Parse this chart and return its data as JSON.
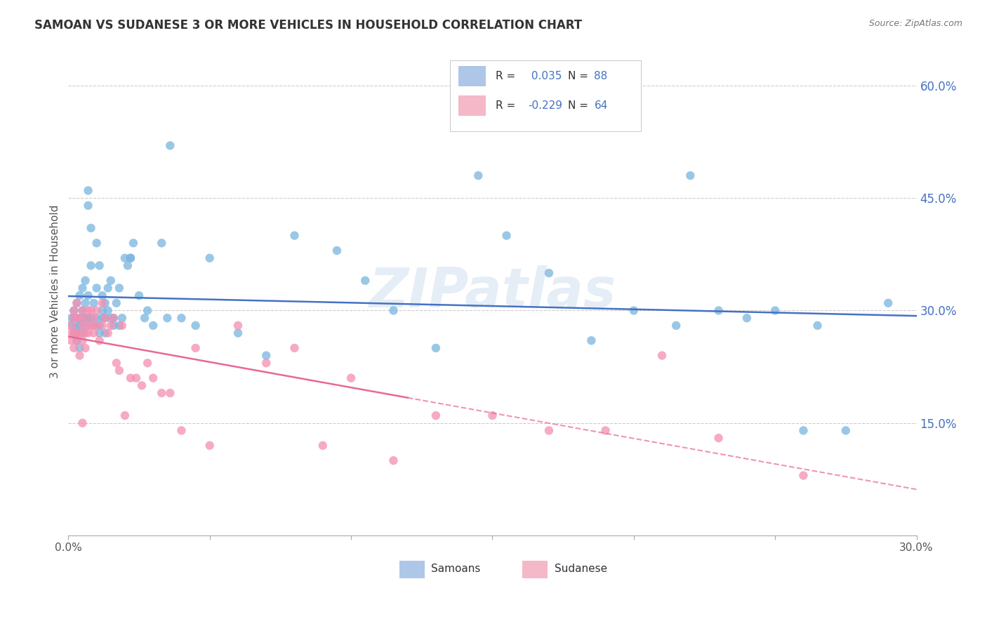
{
  "title": "SAMOAN VS SUDANESE 3 OR MORE VEHICLES IN HOUSEHOLD CORRELATION CHART",
  "source": "Source: ZipAtlas.com",
  "ylabel": "3 or more Vehicles in Household",
  "ytick_values": [
    0.15,
    0.3,
    0.45,
    0.6
  ],
  "xlim": [
    0.0,
    0.3
  ],
  "ylim": [
    0.0,
    0.65
  ],
  "watermark": "ZIPatlas",
  "samoans_scatter_color": "#7ab5e0",
  "sudanese_scatter_color": "#f48fb1",
  "samoans_legend_color": "#aec6e8",
  "sudanese_legend_color": "#f4b8c8",
  "samoans_line_color": "#4472c4",
  "sudanese_line_color": "#e8679a",
  "samoans_R": 0.035,
  "samoans_N": 88,
  "sudanese_R": -0.229,
  "sudanese_N": 64,
  "ytick_color": "#4472c4",
  "xtick_color": "#555555",
  "grid_color": "#cccccc",
  "title_color": "#333333",
  "source_color": "#777777",
  "samoans_x": [
    0.001,
    0.001,
    0.002,
    0.002,
    0.002,
    0.003,
    0.003,
    0.003,
    0.003,
    0.004,
    0.004,
    0.004,
    0.004,
    0.005,
    0.005,
    0.005,
    0.005,
    0.006,
    0.006,
    0.006,
    0.006,
    0.007,
    0.007,
    0.007,
    0.007,
    0.008,
    0.008,
    0.008,
    0.009,
    0.009,
    0.01,
    0.01,
    0.01,
    0.011,
    0.011,
    0.011,
    0.012,
    0.012,
    0.012,
    0.013,
    0.013,
    0.013,
    0.014,
    0.014,
    0.015,
    0.015,
    0.016,
    0.016,
    0.017,
    0.018,
    0.019,
    0.02,
    0.021,
    0.022,
    0.023,
    0.025,
    0.027,
    0.03,
    0.033,
    0.036,
    0.04,
    0.045,
    0.05,
    0.06,
    0.07,
    0.08,
    0.095,
    0.105,
    0.115,
    0.13,
    0.145,
    0.155,
    0.17,
    0.185,
    0.2,
    0.215,
    0.23,
    0.25,
    0.265,
    0.275,
    0.29,
    0.22,
    0.24,
    0.26,
    0.035,
    0.028,
    0.022,
    0.018
  ],
  "samoans_y": [
    0.29,
    0.28,
    0.3,
    0.27,
    0.29,
    0.31,
    0.28,
    0.27,
    0.26,
    0.32,
    0.29,
    0.28,
    0.25,
    0.33,
    0.3,
    0.29,
    0.27,
    0.34,
    0.31,
    0.29,
    0.28,
    0.46,
    0.44,
    0.32,
    0.29,
    0.41,
    0.36,
    0.29,
    0.31,
    0.28,
    0.39,
    0.33,
    0.29,
    0.36,
    0.28,
    0.27,
    0.32,
    0.3,
    0.29,
    0.31,
    0.29,
    0.27,
    0.33,
    0.3,
    0.34,
    0.29,
    0.29,
    0.28,
    0.31,
    0.28,
    0.29,
    0.37,
    0.36,
    0.37,
    0.39,
    0.32,
    0.29,
    0.28,
    0.39,
    0.52,
    0.29,
    0.28,
    0.37,
    0.27,
    0.24,
    0.4,
    0.38,
    0.34,
    0.3,
    0.25,
    0.48,
    0.4,
    0.35,
    0.26,
    0.3,
    0.28,
    0.3,
    0.3,
    0.28,
    0.14,
    0.31,
    0.48,
    0.29,
    0.14,
    0.29,
    0.3,
    0.37,
    0.33
  ],
  "sudanese_x": [
    0.001,
    0.001,
    0.001,
    0.002,
    0.002,
    0.002,
    0.002,
    0.003,
    0.003,
    0.003,
    0.003,
    0.004,
    0.004,
    0.004,
    0.005,
    0.005,
    0.005,
    0.005,
    0.006,
    0.006,
    0.006,
    0.007,
    0.007,
    0.007,
    0.008,
    0.008,
    0.009,
    0.009,
    0.01,
    0.01,
    0.011,
    0.012,
    0.012,
    0.013,
    0.014,
    0.015,
    0.016,
    0.017,
    0.018,
    0.019,
    0.02,
    0.022,
    0.024,
    0.026,
    0.028,
    0.03,
    0.033,
    0.036,
    0.04,
    0.045,
    0.05,
    0.06,
    0.07,
    0.08,
    0.09,
    0.1,
    0.115,
    0.13,
    0.15,
    0.17,
    0.19,
    0.21,
    0.23,
    0.26
  ],
  "sudanese_y": [
    0.28,
    0.27,
    0.26,
    0.3,
    0.29,
    0.27,
    0.25,
    0.31,
    0.29,
    0.27,
    0.26,
    0.29,
    0.27,
    0.24,
    0.3,
    0.28,
    0.26,
    0.15,
    0.29,
    0.27,
    0.25,
    0.3,
    0.28,
    0.27,
    0.3,
    0.28,
    0.29,
    0.27,
    0.3,
    0.28,
    0.26,
    0.31,
    0.28,
    0.29,
    0.27,
    0.28,
    0.29,
    0.23,
    0.22,
    0.28,
    0.16,
    0.21,
    0.21,
    0.2,
    0.23,
    0.21,
    0.19,
    0.19,
    0.14,
    0.25,
    0.12,
    0.28,
    0.23,
    0.25,
    0.12,
    0.21,
    0.1,
    0.16,
    0.16,
    0.14,
    0.14,
    0.24,
    0.13,
    0.08
  ]
}
